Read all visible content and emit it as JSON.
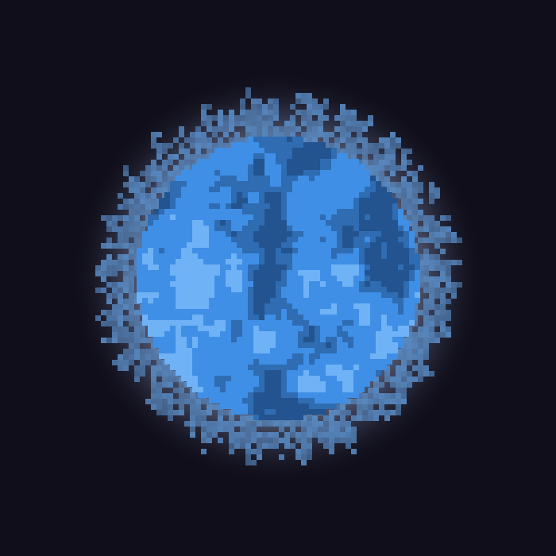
{
  "scene": {
    "background_color": "#100e1a",
    "subject": "pixel-art-blue-star",
    "glow_color": "#c4d0ee",
    "corona_color": "#5b8fc9",
    "surface_base_color": "#3f8fe6",
    "surface_shadow_color": "#2f6cb2",
    "surface_highlight_color": "#6fb2f5",
    "surface_dark_color": "#23548f"
  }
}
